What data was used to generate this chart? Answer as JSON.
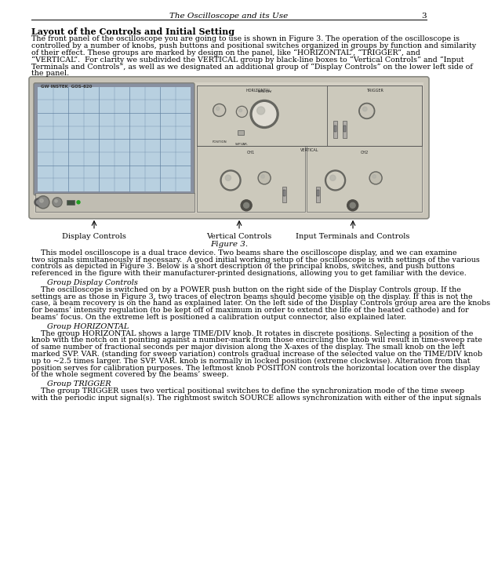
{
  "header_italic": "The Oscilloscope and its Use",
  "header_page": "3",
  "section_title": "Layout of the Controls and Initial Setting",
  "para1_lines": [
    "The front panel of the oscilloscope you are going to use is shown in Figure 3. The operation of the oscilloscope is",
    "controlled by a number of knobs, push buttons and positional switches organized in groups by function and similarity",
    "of their effect. These groups are marked by design on the panel, like “HORIZONTAL”, “TRIGGER”, and",
    "“VERTICAL”.  For clarity we subdivided the VERTICAL group by black-line boxes to “Vertical Controls” and “Input",
    "Terminals and Controls”, as well as we designated an additional group of “Display Controls” on the lower left side of",
    "the panel."
  ],
  "fig_caption_labels": [
    "Display Controls",
    "Vertical Controls",
    "Input Terminals and Controls"
  ],
  "fig_caption": "Figure 3.",
  "para2_lines": [
    "    This model oscilloscope is a dual trace device. Two beams share the oscilloscope display, and we can examine",
    "two signals simultaneously if necessary.  A good initial working setup of the oscilloscope is with settings of the various",
    "controls as depicted in Figure 3. Below is a short description of the principal knobs, switches, and push buttons",
    "referenced in the figure with their manufacturer-printed designations, allowing you to get familiar with the device."
  ],
  "group1_title": "Group Display Controls",
  "group1_lines": [
    "    The oscilloscope is switched on by a POWER push button on the right side of the Display Controls group. If the",
    "settings are as those in Figure 3, two traces of electron beams should become visible on the display. If this is not the",
    "case, a beam recovery is on the hand as explained later. On the left side of the Display Controls group area are the knobs",
    "for beams’ intensity regulation (to be kept off of maximum in order to extend the life of the heated cathode) and for",
    "beams’ focus. On the extreme left is positioned a calibration output connector, also explained later."
  ],
  "group2_title": "Group HORIZONTAL",
  "group2_lines": [
    "    The group HORIZONTAL shows a large TIME/DIV knob. It rotates in discrete positions. Selecting a position of the",
    "knob with the notch on it pointing against a number-mark from those encircling the knob will result in time-sweep rate",
    "of same number of fractional seconds per major division along the X-axes of the display. The small knob on the left",
    "marked SVP. VAR. (standing for sweep variation) controls gradual increase of the selected value on the TIME/DIV knob",
    "up to ~2.5 times larger. The SVP. VAR. knob is normally in locked position (extreme clockwise). Alteration from that",
    "position serves for calibration purposes. The leftmost knob POSITION controls the horizontal location over the display",
    "of the whole segment covered by the beams’ sweep."
  ],
  "group3_title": "Group TRIGGER",
  "group3_lines": [
    "    The group TRIGGER uses two vertical positional switches to define the synchronization mode of the time sweep",
    "with the periodic input signal(s). The rightmost switch SOURCE allows synchronization with either of the input signals"
  ],
  "bg_color": "#ffffff",
  "scope_bg": "#d0cfc8",
  "scope_screen_bg": "#a8c8d8",
  "scope_body": "#c8c4bc"
}
